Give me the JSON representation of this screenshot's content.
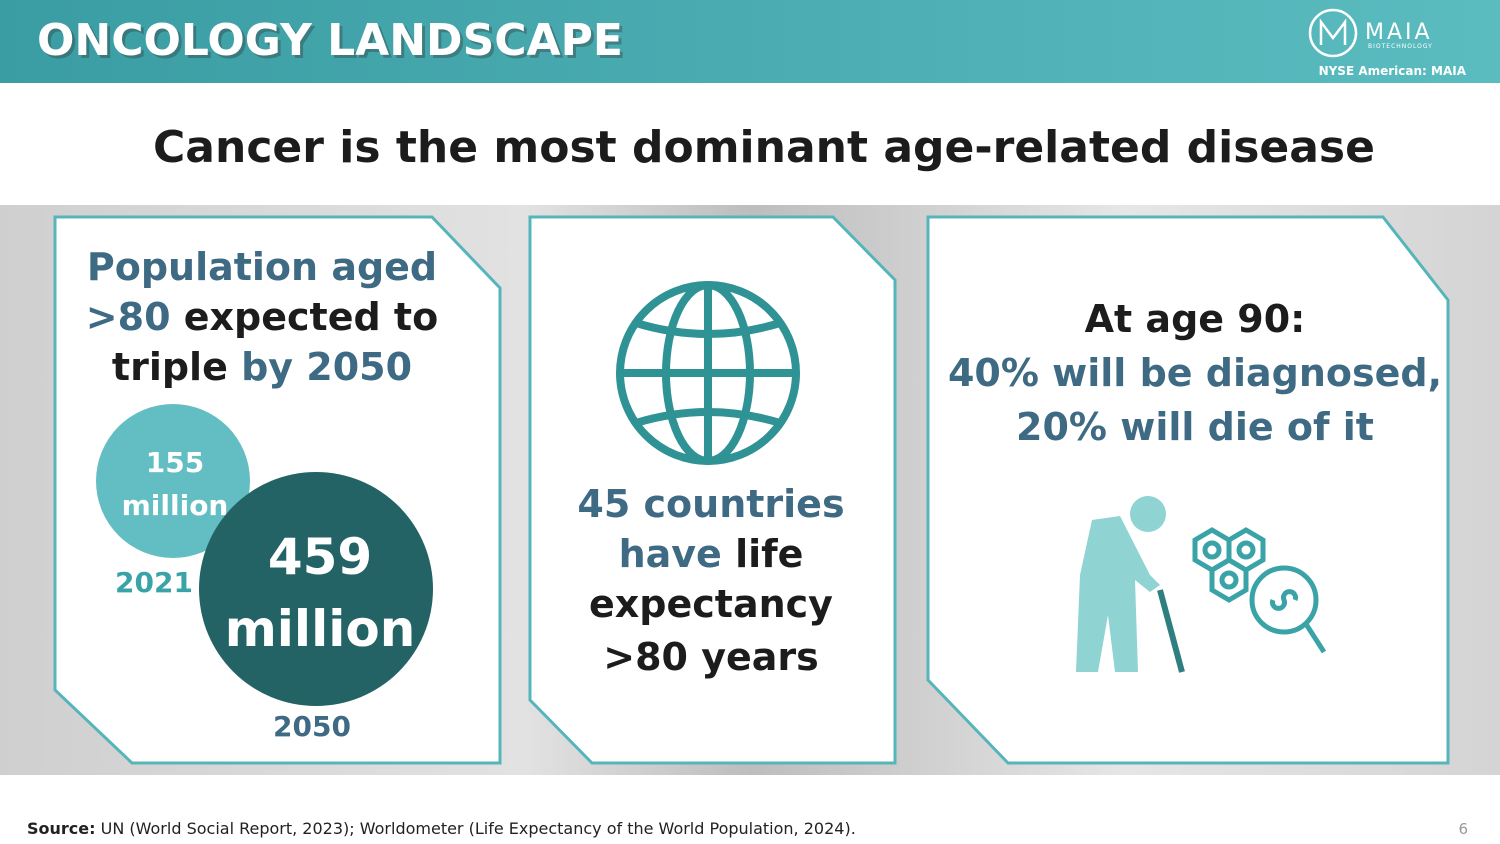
{
  "header": {
    "title": "ONCOLOGY LANDSCAPE",
    "logo_name": "MAIA",
    "logo_tagline": "BIOTECHNOLOGY",
    "ticker": "NYSE American: MAIA"
  },
  "headline": "Cancer is the most dominant age-related disease",
  "cards": [
    {
      "heading": [
        "Population aged",
        ">80",
        "expected to",
        "triple",
        "by 2050"
      ],
      "bubbles": [
        {
          "number": "155",
          "unit": "million",
          "year": "2021"
        },
        {
          "number": "459",
          "unit": "million",
          "year": "2050"
        }
      ]
    },
    {
      "text": [
        "45 countries",
        "have",
        "life",
        "expectancy",
        ">80 years"
      ]
    },
    {
      "text": [
        "At age 90:",
        "40% will be diagnosed,",
        "20% will die of it"
      ]
    }
  ],
  "footer": {
    "source_label": "Source:",
    "source": "UN (World Social Report, 2023); Worldometer (Life Expectancy of the World Population, 2024).",
    "page_number": "6"
  }
}
